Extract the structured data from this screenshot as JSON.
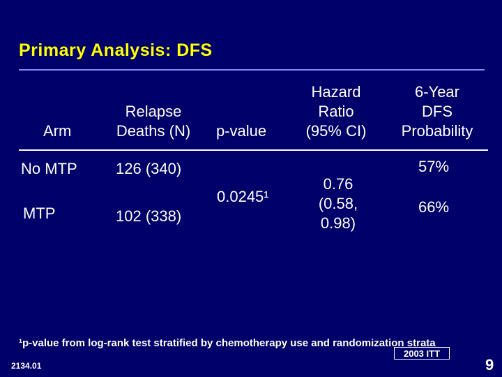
{
  "slide": {
    "title": "Primary Analysis: DFS",
    "colors": {
      "background": "#00006a",
      "title": "#ffff00",
      "title_rule": "#8888ff",
      "text": "#ffffff"
    }
  },
  "table": {
    "headers": {
      "arm": "Arm",
      "relapse_deaths_l1": "Relapse",
      "relapse_deaths_l2": "Deaths (N)",
      "p_value": "p-value",
      "hazard_l1": "Hazard",
      "hazard_l2": "Ratio",
      "hazard_l3": "(95% CI)",
      "dfs_l1": "6-Year",
      "dfs_l2": "DFS",
      "dfs_l3": "Probability"
    },
    "rows": [
      {
        "arm": "No MTP",
        "relapse_deaths": "126 (340)",
        "dfs": "57%"
      },
      {
        "arm": "MTP",
        "relapse_deaths": "102 (338)",
        "dfs": "66%"
      }
    ],
    "p_value": "0.0245¹",
    "hazard_l1": "0.76",
    "hazard_l2": "(0.58,",
    "hazard_l3": "0.98)"
  },
  "footnote": "¹p-value from log-rank test stratified by chemotherapy use and randomization strata",
  "stamp": "2003 ITT",
  "slide_code": "2134.01",
  "page_number": "9"
}
